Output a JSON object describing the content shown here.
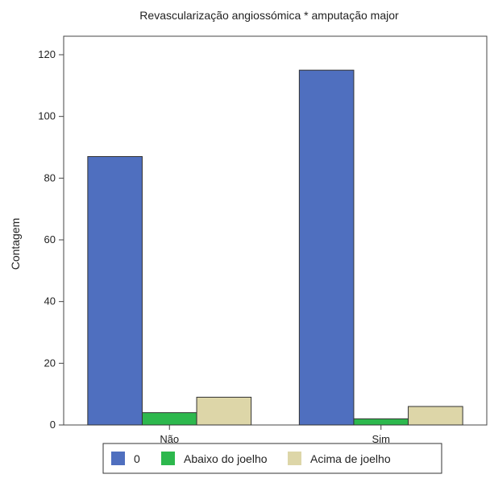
{
  "chart_data": {
    "type": "bar",
    "title": "Revascularização angiossómica * amputação major",
    "xlabel": "",
    "ylabel": "Contagem",
    "categories": [
      "Não",
      "Sim"
    ],
    "series": [
      {
        "name": "0",
        "values": [
          87,
          115
        ],
        "color": "#4f6fbf"
      },
      {
        "name": "Abaixo do joelho",
        "values": [
          4,
          2
        ],
        "color": "#2db84d"
      },
      {
        "name": "Acima de joelho",
        "values": [
          9,
          6
        ],
        "color": "#ddd6a8"
      }
    ],
    "ylim": [
      0,
      126
    ],
    "yticks": [
      0,
      20,
      40,
      60,
      80,
      100,
      120
    ],
    "grid": false,
    "legend_position": "bottom"
  }
}
